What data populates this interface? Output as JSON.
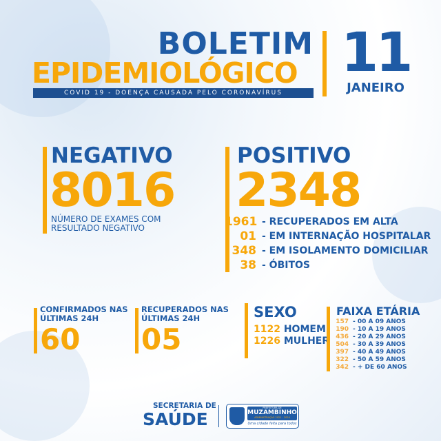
{
  "header": {
    "title_line1": "BOLETIM",
    "title_line2": "EPIDEMIOLÓGICO",
    "subtitle": "COVID 19 - DOENÇA CAUSADA PELO CORONAVÍRUS",
    "day": "11",
    "month": "JANEIRO"
  },
  "negativo": {
    "label": "NEGATIVO",
    "value": "8016",
    "desc_line1": "NÚMERO DE EXAMES COM",
    "desc_line2": "RESULTADO NEGATIVO"
  },
  "positivo": {
    "label": "POSITIVO",
    "value": "2348",
    "items": [
      {
        "value": "1961",
        "label": "- RECUPERADOS EM ALTA"
      },
      {
        "value": "01",
        "label": "- EM INTERNAÇÃO HOSPITALAR"
      },
      {
        "value": "348",
        "label": "- EM ISOLAMENTO DOMICILIAR"
      },
      {
        "value": "38",
        "label": "- ÓBITOS"
      }
    ]
  },
  "confirmados": {
    "line1": "CONFIRMADOS NAS",
    "line2": "ÚLTIMAS 24H",
    "value": "60"
  },
  "recuperados": {
    "line1": "RECUPERADOS NAS",
    "line2": "ÚLTIMAS 24H",
    "value": "05"
  },
  "sexo": {
    "label": "SEXO",
    "items": [
      {
        "value": "1122",
        "label": "HOMEM"
      },
      {
        "value": "1226",
        "label": "MULHER"
      }
    ]
  },
  "faixa": {
    "label": "FAIXA ETÁRIA",
    "items": [
      {
        "value": "157",
        "label": "- 00 A 09 ANOS"
      },
      {
        "value": "190",
        "label": "- 10 A 19 ANOS"
      },
      {
        "value": "436",
        "label": "- 20 A 29 ANOS"
      },
      {
        "value": "504",
        "label": "- 30 A 39 ANOS"
      },
      {
        "value": "397",
        "label": "- 40 A 49 ANOS"
      },
      {
        "value": "322",
        "label": "- 50 A 59 ANOS"
      },
      {
        "value": "342",
        "label": "- + DE 60 ANOS"
      }
    ]
  },
  "footer": {
    "secretaria_line1": "SECRETARIA DE",
    "secretaria_line2": "SAÚDE",
    "logo_line1": "PREFEITURA DE",
    "logo_line2": "MUZAMBINHO",
    "logo_line3": "ADMINISTRAÇÃO 2021 - 2024",
    "logo_slogan": "Uma cidade feita para todos"
  },
  "colors": {
    "blue": "#1f5ba5",
    "orange": "#f7a70a"
  }
}
